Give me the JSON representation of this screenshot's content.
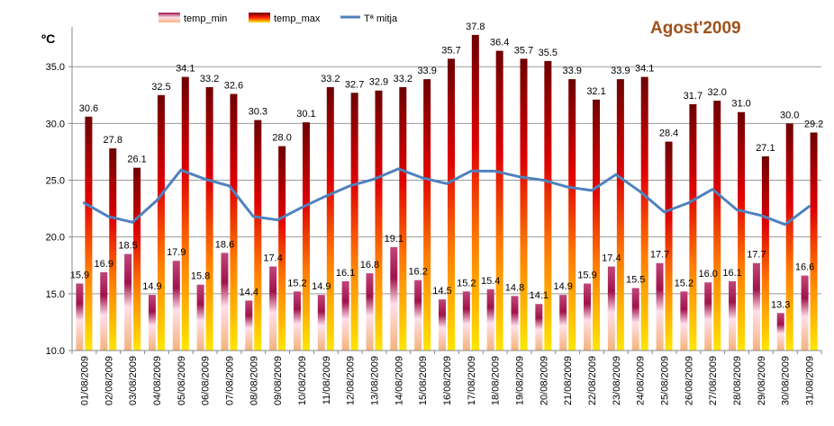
{
  "chart_data": {
    "type": "bar",
    "title": "Agost'2009",
    "ylabel": "ºC",
    "xlabel": "",
    "ylim": [
      10.0,
      38.5
    ],
    "yticks": [
      "10.0",
      "15.0",
      "20.0",
      "25.0",
      "30.0",
      "35.0"
    ],
    "grid": "horizontal",
    "legend_position": "top",
    "categories": [
      "01/08/2009",
      "02/08/2009",
      "03/08/2009",
      "04/08/2009",
      "05/08/2009",
      "06/08/2009",
      "07/08/2009",
      "08/08/2009",
      "09/08/2009",
      "10/08/2009",
      "11/08/2009",
      "12/08/2009",
      "13/08/2009",
      "14/08/2009",
      "15/08/2009",
      "16/08/2009",
      "17/08/2009",
      "18/08/2009",
      "19/08/2009",
      "20/08/2009",
      "21/08/2009",
      "22/08/2009",
      "23/08/2009",
      "24/08/2009",
      "25/08/2009",
      "26/08/2009",
      "27/08/2009",
      "28/08/2009",
      "29/08/2009",
      "30/08/2009",
      "31/08/2009"
    ],
    "series": [
      {
        "name": "temp_min",
        "type": "bar",
        "values": [
          15.9,
          16.9,
          18.5,
          14.9,
          17.9,
          15.8,
          18.6,
          14.4,
          17.4,
          15.2,
          14.9,
          16.1,
          16.8,
          19.1,
          16.2,
          14.5,
          15.2,
          15.4,
          14.8,
          14.1,
          14.9,
          15.9,
          17.4,
          15.5,
          17.7,
          15.2,
          16.0,
          16.1,
          17.7,
          13.3,
          16.6
        ]
      },
      {
        "name": "temp_max",
        "type": "bar",
        "values": [
          30.6,
          27.8,
          26.1,
          32.5,
          34.1,
          33.2,
          32.6,
          30.3,
          28.0,
          30.1,
          33.2,
          32.7,
          32.9,
          33.2,
          33.9,
          35.7,
          37.8,
          36.4,
          35.7,
          35.5,
          33.9,
          32.1,
          33.9,
          34.1,
          28.4,
          31.7,
          32.0,
          31.0,
          27.1,
          30.0,
          29.2
        ]
      },
      {
        "name": "Tª mitja",
        "type": "line",
        "values": [
          23.0,
          21.8,
          21.3,
          23.2,
          25.9,
          25.1,
          24.5,
          21.8,
          21.5,
          22.6,
          23.6,
          24.5,
          25.1,
          26.0,
          25.2,
          24.7,
          25.8,
          25.8,
          25.3,
          25.0,
          24.4,
          24.1,
          25.5,
          24.0,
          22.2,
          23.0,
          24.2,
          22.4,
          21.9,
          21.1,
          22.7
        ]
      }
    ],
    "colors": {
      "line": "#4f81bd",
      "grid": "#999999",
      "title": "#a0521d",
      "axis": "#888888"
    }
  }
}
